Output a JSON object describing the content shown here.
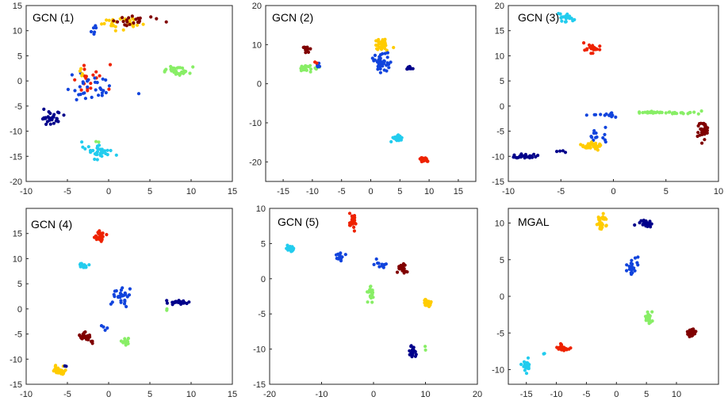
{
  "figure": {
    "background": "#ffffff",
    "axis_color": "#262626"
  },
  "colors": {
    "navy": "#00008b",
    "blue": "#1144dd",
    "cyan": "#22ccee",
    "green": "#88ee66",
    "yellow": "#ffcc00",
    "red": "#ee2200",
    "maroon": "#800000"
  },
  "chart_data": [
    {
      "type": "scatter",
      "title": "GCN (1)",
      "xlim": [
        -10,
        15
      ],
      "ylim": [
        -20,
        15
      ],
      "xticks": [
        -10,
        -5,
        0,
        5,
        10,
        15
      ],
      "yticks": [
        -20,
        -15,
        -10,
        -5,
        0,
        5,
        10,
        15
      ],
      "clusters": [
        {
          "color": "yellow",
          "cx": 1.5,
          "cy": 11.5,
          "sx": 2.3,
          "sy": 1.3,
          "n": 30
        },
        {
          "color": "maroon",
          "cx": 3.0,
          "cy": 12.0,
          "sx": 2.5,
          "sy": 1.2,
          "n": 22
        },
        {
          "color": "blue",
          "cx": -1.5,
          "cy": 9.5,
          "sx": 1.0,
          "sy": 1.2,
          "n": 6
        },
        {
          "color": "green",
          "cx": 8.5,
          "cy": 2.0,
          "sx": 1.8,
          "sy": 0.7,
          "n": 34
        },
        {
          "color": "red",
          "cx": -2.5,
          "cy": 1.0,
          "sx": 2.0,
          "sy": 3.0,
          "n": 18
        },
        {
          "color": "blue",
          "cx": -2.0,
          "cy": -1.0,
          "sx": 2.3,
          "sy": 2.5,
          "n": 32
        },
        {
          "color": "yellow",
          "cx": -3.5,
          "cy": 2.0,
          "sx": 1.0,
          "sy": 1.5,
          "n": 4
        },
        {
          "color": "navy",
          "cx": -7.0,
          "cy": -7.5,
          "sx": 1.2,
          "sy": 1.5,
          "n": 30
        },
        {
          "color": "cyan",
          "cx": -1.5,
          "cy": -14.0,
          "sx": 1.5,
          "sy": 1.0,
          "n": 36
        },
        {
          "color": "green",
          "cx": -1.5,
          "cy": -13.0,
          "sx": 1.0,
          "sy": 1.0,
          "n": 2
        }
      ]
    },
    {
      "type": "scatter",
      "title": "GCN (2)",
      "xlim": [
        -18,
        18
      ],
      "ylim": [
        -25,
        20
      ],
      "xticks": [
        -15,
        -10,
        -5,
        0,
        5,
        10,
        15
      ],
      "yticks": [
        -20,
        -10,
        0,
        10,
        20
      ],
      "clusters": [
        {
          "color": "maroon",
          "cx": -11.0,
          "cy": 8.5,
          "sx": 0.4,
          "sy": 1.0,
          "n": 14
        },
        {
          "color": "green",
          "cx": -11.0,
          "cy": 4.0,
          "sx": 1.0,
          "sy": 0.8,
          "n": 22
        },
        {
          "color": "blue",
          "cx": -9.0,
          "cy": 4.5,
          "sx": 0.6,
          "sy": 0.5,
          "n": 6
        },
        {
          "color": "red",
          "cx": -9.5,
          "cy": 5.5,
          "sx": 0.3,
          "sy": 0.4,
          "n": 2
        },
        {
          "color": "yellow",
          "cx": 2.0,
          "cy": 10.0,
          "sx": 1.0,
          "sy": 1.3,
          "n": 36
        },
        {
          "color": "blue",
          "cx": 2.0,
          "cy": 5.5,
          "sx": 1.3,
          "sy": 2.3,
          "n": 40
        },
        {
          "color": "navy",
          "cx": 6.5,
          "cy": 4.0,
          "sx": 0.8,
          "sy": 0.4,
          "n": 14
        },
        {
          "color": "cyan",
          "cx": 4.5,
          "cy": -14.0,
          "sx": 0.7,
          "sy": 0.6,
          "n": 26
        },
        {
          "color": "red",
          "cx": 9.0,
          "cy": -19.5,
          "sx": 0.7,
          "sy": 0.5,
          "n": 28
        }
      ]
    },
    {
      "type": "scatter",
      "title": "GCN (3)",
      "xlim": [
        -10,
        10
      ],
      "ylim": [
        -15,
        20
      ],
      "xticks": [
        -10,
        -5,
        0,
        5,
        10
      ],
      "yticks": [
        -15,
        -10,
        -5,
        0,
        5,
        10,
        15,
        20
      ],
      "clusters": [
        {
          "color": "cyan",
          "cx": -4.5,
          "cy": 17.5,
          "sx": 0.5,
          "sy": 0.8,
          "n": 22
        },
        {
          "color": "red",
          "cx": -2.0,
          "cy": 11.5,
          "sx": 0.6,
          "sy": 0.8,
          "n": 24
        },
        {
          "color": "green",
          "cx": 4.5,
          "cy": -1.3,
          "sx": 2.8,
          "sy": 0.2,
          "n": 44
        },
        {
          "color": "blue",
          "cx": -0.8,
          "cy": -1.8,
          "sx": 1.0,
          "sy": 0.3,
          "n": 14
        },
        {
          "color": "blue",
          "cx": -1.5,
          "cy": -6.0,
          "sx": 0.8,
          "sy": 1.3,
          "n": 14
        },
        {
          "color": "maroon",
          "cx": 8.5,
          "cy": -5.0,
          "sx": 0.4,
          "sy": 1.5,
          "n": 30
        },
        {
          "color": "yellow",
          "cx": -2.0,
          "cy": -8.0,
          "sx": 1.2,
          "sy": 0.6,
          "n": 34
        },
        {
          "color": "navy",
          "cx": -8.5,
          "cy": -10.0,
          "sx": 1.0,
          "sy": 0.4,
          "n": 26
        },
        {
          "color": "navy",
          "cx": -5.0,
          "cy": -9.0,
          "sx": 0.4,
          "sy": 0.2,
          "n": 4
        }
      ]
    },
    {
      "type": "scatter",
      "title": "GCN (4)",
      "xlim": [
        -10,
        15
      ],
      "ylim": [
        -15,
        20
      ],
      "xticks": [
        -10,
        -5,
        0,
        5,
        10,
        15
      ],
      "yticks": [
        -15,
        -10,
        -5,
        0,
        5,
        10,
        15
      ],
      "clusters": [
        {
          "color": "red",
          "cx": -1.0,
          "cy": 14.5,
          "sx": 0.5,
          "sy": 0.7,
          "n": 30
        },
        {
          "color": "cyan",
          "cx": -3.0,
          "cy": 8.5,
          "sx": 0.6,
          "sy": 0.5,
          "n": 18
        },
        {
          "color": "blue",
          "cx": 1.5,
          "cy": 2.5,
          "sx": 1.0,
          "sy": 1.5,
          "n": 28
        },
        {
          "color": "navy",
          "cx": 8.5,
          "cy": 1.3,
          "sx": 1.0,
          "sy": 0.4,
          "n": 30
        },
        {
          "color": "green",
          "cx": 7.0,
          "cy": 0.0,
          "sx": 0.3,
          "sy": 0.3,
          "n": 2
        },
        {
          "color": "green",
          "cx": 2.0,
          "cy": -6.5,
          "sx": 0.4,
          "sy": 0.8,
          "n": 12
        },
        {
          "color": "blue",
          "cx": -0.5,
          "cy": -3.0,
          "sx": 0.5,
          "sy": 0.8,
          "n": 4
        },
        {
          "color": "maroon",
          "cx": -3.0,
          "cy": -5.5,
          "sx": 0.8,
          "sy": 1.0,
          "n": 30
        },
        {
          "color": "yellow",
          "cx": -6.0,
          "cy": -12.3,
          "sx": 0.8,
          "sy": 0.6,
          "n": 32
        },
        {
          "color": "navy",
          "cx": -5.2,
          "cy": -11.5,
          "sx": 0.3,
          "sy": 0.3,
          "n": 2
        }
      ]
    },
    {
      "type": "scatter",
      "title": "GCN (5)",
      "xlim": [
        -20,
        20
      ],
      "ylim": [
        -15,
        10
      ],
      "xticks": [
        -20,
        -10,
        0,
        10,
        20
      ],
      "yticks": [
        -15,
        -10,
        -5,
        0,
        5,
        10
      ],
      "clusters": [
        {
          "color": "red",
          "cx": -4.0,
          "cy": 8.0,
          "sx": 0.6,
          "sy": 0.8,
          "n": 26
        },
        {
          "color": "cyan",
          "cx": -16.0,
          "cy": 4.3,
          "sx": 0.6,
          "sy": 0.3,
          "n": 24
        },
        {
          "color": "blue",
          "cx": -6.5,
          "cy": 3.0,
          "sx": 0.6,
          "sy": 0.5,
          "n": 14
        },
        {
          "color": "blue",
          "cx": 1.5,
          "cy": 2.0,
          "sx": 1.2,
          "sy": 0.8,
          "n": 12
        },
        {
          "color": "maroon",
          "cx": 5.5,
          "cy": 1.5,
          "sx": 0.8,
          "sy": 0.6,
          "n": 30
        },
        {
          "color": "green",
          "cx": -0.5,
          "cy": -2.0,
          "sx": 0.6,
          "sy": 1.0,
          "n": 22
        },
        {
          "color": "yellow",
          "cx": 10.5,
          "cy": -3.5,
          "sx": 0.6,
          "sy": 0.5,
          "n": 30
        },
        {
          "color": "navy",
          "cx": 7.5,
          "cy": -10.5,
          "sx": 0.5,
          "sy": 0.8,
          "n": 22
        },
        {
          "color": "green",
          "cx": 10.0,
          "cy": -10.0,
          "sx": 0.3,
          "sy": 0.3,
          "n": 2
        }
      ]
    },
    {
      "type": "scatter",
      "title": "MGAL",
      "xlim": [
        -18,
        17
      ],
      "ylim": [
        -12,
        12
      ],
      "xticks": [
        -15,
        -10,
        -5,
        0,
        5,
        10
      ],
      "yticks": [
        -10,
        -5,
        0,
        5,
        10
      ],
      "clusters": [
        {
          "color": "yellow",
          "cx": -2.5,
          "cy": 10.0,
          "sx": 0.6,
          "sy": 0.8,
          "n": 30
        },
        {
          "color": "navy",
          "cx": 5.0,
          "cy": 10.0,
          "sx": 1.0,
          "sy": 0.4,
          "n": 28
        },
        {
          "color": "blue",
          "cx": 2.5,
          "cy": 4.0,
          "sx": 0.8,
          "sy": 1.3,
          "n": 22
        },
        {
          "color": "green",
          "cx": 5.5,
          "cy": -3.0,
          "sx": 0.5,
          "sy": 0.7,
          "n": 26
        },
        {
          "color": "maroon",
          "cx": 12.5,
          "cy": -5.0,
          "sx": 0.7,
          "sy": 0.6,
          "n": 30
        },
        {
          "color": "red",
          "cx": -9.0,
          "cy": -7.0,
          "sx": 1.0,
          "sy": 0.4,
          "n": 30
        },
        {
          "color": "cyan",
          "cx": -15.0,
          "cy": -9.5,
          "sx": 0.6,
          "sy": 0.6,
          "n": 26
        },
        {
          "color": "cyan",
          "cx": -12.0,
          "cy": -7.8,
          "sx": 0.3,
          "sy": 0.2,
          "n": 2
        }
      ]
    }
  ]
}
